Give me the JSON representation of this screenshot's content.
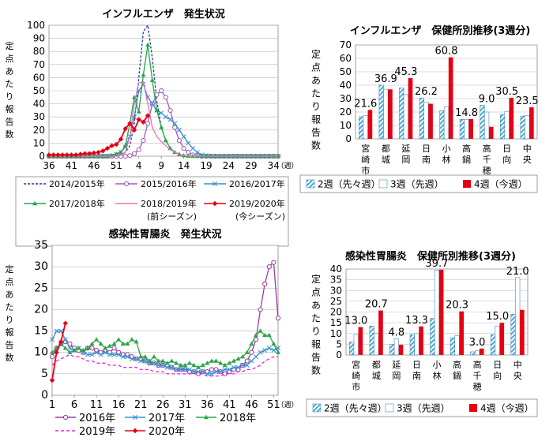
{
  "chart_data": [
    {
      "type": "line",
      "title": "インフルエンザ　発生状況",
      "ylabel": "定点あたり報告数",
      "xunit": "（週）",
      "ylim": [
        0,
        100
      ],
      "yticks": [
        0,
        10,
        20,
        30,
        40,
        50,
        60,
        70,
        80,
        90,
        100
      ],
      "x_ticks": [
        "36",
        "41",
        "46",
        "51",
        "4",
        "9",
        "14",
        "19",
        "24",
        "29",
        "34"
      ],
      "x_positions": [
        "36",
        "37",
        "38",
        "39",
        "40",
        "41",
        "42",
        "43",
        "44",
        "45",
        "46",
        "47",
        "48",
        "49",
        "50",
        "51",
        "52",
        "1",
        "2",
        "3",
        "4",
        "5",
        "6",
        "7",
        "8",
        "9",
        "10",
        "11",
        "12",
        "13",
        "14",
        "15",
        "16",
        "17",
        "18",
        "19",
        "20",
        "21",
        "22",
        "23",
        "24",
        "25",
        "26",
        "27",
        "28",
        "29",
        "30",
        "31",
        "32",
        "33",
        "34",
        "35"
      ],
      "series": [
        {
          "name": "2014/2015年",
          "color": "#1f3f8f",
          "dash": "3,2",
          "marker": "none",
          "values": [
            0,
            0,
            0,
            0,
            0,
            0,
            0,
            0,
            0,
            0,
            0,
            0,
            0,
            0,
            0.2,
            0.5,
            1.2,
            3,
            8,
            25,
            60,
            95,
            100,
            75,
            42,
            22,
            12,
            6,
            3,
            1.5,
            0.5,
            0.2,
            0,
            0,
            0,
            0,
            0,
            0,
            0,
            0,
            0,
            0,
            0,
            0,
            0,
            0,
            0,
            0,
            0,
            0,
            0,
            0
          ]
        },
        {
          "name": "2015/2016年",
          "color": "#9a5fbf",
          "dash": "",
          "marker": "circle",
          "values": [
            0,
            0,
            0,
            0,
            0,
            0,
            0,
            0,
            0,
            0,
            0,
            0,
            0,
            0,
            0,
            0,
            0,
            0,
            0.5,
            2,
            5,
            12,
            25,
            40,
            47,
            50,
            45,
            35,
            22,
            12,
            6,
            3,
            1,
            0.5,
            0,
            0,
            0,
            0,
            0,
            0,
            0,
            0,
            0,
            0,
            0,
            0,
            0,
            0,
            0,
            0,
            0,
            0
          ]
        },
        {
          "name": "2016/2017年",
          "color": "#3b8fd1",
          "dash": "",
          "marker": "x",
          "values": [
            0,
            0,
            0,
            0,
            0,
            0,
            0,
            0,
            0,
            0,
            0,
            0,
            0,
            0,
            0.5,
            1.5,
            3,
            7,
            15,
            30,
            50,
            55,
            45,
            40,
            35,
            33,
            30,
            28,
            25,
            20,
            15,
            10,
            6,
            3,
            1,
            0.5,
            0,
            0,
            0,
            0,
            0,
            0,
            0,
            0,
            0,
            0,
            0,
            0,
            0,
            0,
            0,
            0
          ]
        },
        {
          "name": "2017/2018年",
          "color": "#2aa64b",
          "dash": "",
          "marker": "triangle",
          "values": [
            0,
            0,
            0,
            0,
            0,
            0,
            0,
            0,
            0,
            0,
            0,
            0,
            0,
            0,
            0.5,
            1.5,
            3,
            8,
            25,
            45,
            34,
            62,
            85,
            58,
            35,
            22,
            12,
            6,
            3,
            1.5,
            0.5,
            0.2,
            0,
            0,
            0,
            0,
            0,
            0,
            0,
            0,
            0,
            0,
            0,
            0,
            0,
            0,
            0,
            0,
            0,
            0,
            0,
            0
          ]
        },
        {
          "name": "2018/2019年\n(前シーズン)",
          "color": "#ee6fb5",
          "dash": "",
          "marker": "none",
          "values": [
            0,
            0,
            0,
            0,
            0,
            0,
            0,
            0,
            0,
            0,
            0,
            0,
            0,
            0,
            0,
            0,
            0.5,
            3,
            15,
            40,
            56,
            57,
            40,
            22,
            15,
            11,
            8,
            5,
            3,
            1.5,
            0.5,
            0.2,
            0,
            0,
            0,
            0,
            0,
            0,
            0,
            0,
            0,
            0,
            0,
            0,
            0,
            0,
            0,
            0,
            0,
            0,
            0,
            0
          ]
        },
        {
          "name": "2019/2020年\n(今シーズン)",
          "color": "#e60012",
          "dash": "",
          "marker": "diamond",
          "values": [
            1,
            1,
            1,
            1,
            1,
            1,
            1,
            1.5,
            2,
            2,
            2.5,
            3,
            4,
            6,
            8,
            9,
            13,
            21,
            25,
            20,
            28,
            26,
            31,
            null,
            null,
            null,
            null,
            null,
            null,
            null,
            null,
            null,
            null,
            null,
            null,
            null,
            null,
            null,
            null,
            null,
            null,
            null,
            null,
            null,
            null,
            null,
            null,
            null,
            null,
            null,
            null,
            null
          ]
        }
      ]
    },
    {
      "type": "bar",
      "title": "インフルエンザ　保健所別推移(3週分)",
      "ylabel": "定点あたり報告数",
      "ylim": [
        0,
        70
      ],
      "yticks": [
        0,
        10,
        20,
        30,
        40,
        50,
        60,
        70
      ],
      "categories": [
        "宮崎市",
        "都城",
        "延岡",
        "日南",
        "小林",
        "高鍋",
        "高千穂",
        "日向",
        "中央"
      ],
      "series": [
        {
          "name": "2週（先々週）",
          "color": "#7fc7e8",
          "pattern": "hatch",
          "values": [
            16.5,
            40,
            38,
            30.5,
            21,
            14.5,
            25,
            18,
            17
          ]
        },
        {
          "name": "3週（先週）",
          "color": "#ffffff",
          "pattern": "plain",
          "values": [
            17.5,
            37,
            33,
            27.5,
            24,
            14.5,
            20,
            20.5,
            17.5
          ]
        },
        {
          "name": "4週（今週）",
          "color": "#e60012",
          "pattern": "solid",
          "values": [
            21.6,
            36.9,
            45.3,
            26.2,
            60.8,
            14.8,
            9.0,
            30.5,
            23.5
          ]
        }
      ],
      "data_labels": [
        "21.6",
        "36.9",
        "45.3",
        "26.2",
        "60.8",
        "14.8",
        "9.0",
        "30.5",
        "23.5"
      ]
    },
    {
      "type": "line",
      "title": "感染性胃腸炎　発生状況",
      "ylabel": "定点あたり報告数",
      "xunit": "（週）",
      "ylim": [
        0,
        35
      ],
      "yticks": [
        0,
        5,
        10,
        15,
        20,
        25,
        30,
        35
      ],
      "x_ticks": [
        "1",
        "6",
        "11",
        "16",
        "21",
        "26",
        "31",
        "36",
        "41",
        "46",
        "51"
      ],
      "series": [
        {
          "name": "2016年",
          "color": "#9b3b9b",
          "dash": "",
          "marker": "circle",
          "values": [
            9,
            11,
            12,
            12.5,
            12,
            11,
            10.5,
            10,
            11,
            11,
            10.5,
            10,
            10.5,
            10,
            11,
            10,
            9.5,
            9.5,
            9,
            8.5,
            8.5,
            8,
            7.5,
            7.5,
            7,
            7,
            7,
            6.5,
            6,
            6,
            6,
            5.5,
            5.5,
            5,
            5.5,
            5.5,
            6,
            6,
            5.5,
            5,
            5.5,
            6,
            6,
            7,
            8,
            10,
            13,
            20,
            26,
            30,
            31,
            18
          ]
        },
        {
          "name": "2017年",
          "color": "#3b8fd1",
          "dash": "",
          "marker": "x",
          "values": [
            13,
            15,
            15,
            13,
            11,
            10.5,
            11,
            10,
            9.5,
            9.5,
            10,
            9.5,
            10,
            9.5,
            9.5,
            9.5,
            9,
            9,
            8.5,
            8.5,
            8,
            8,
            7.5,
            7.5,
            7,
            7,
            6.5,
            6.5,
            6,
            6,
            6,
            6,
            5.5,
            5.5,
            5.5,
            5,
            5,
            5.5,
            5.5,
            6,
            6,
            6.5,
            6.5,
            7,
            7,
            8,
            9,
            10,
            10.5,
            11,
            10.5,
            11
          ]
        },
        {
          "name": "2018年",
          "color": "#2aa64b",
          "dash": "",
          "marker": "triangle",
          "values": [
            10,
            11,
            12,
            11,
            10,
            10.5,
            11,
            10.5,
            11,
            12,
            13,
            12,
            11,
            11.5,
            12,
            13,
            12,
            12,
            13,
            12.5,
            9,
            9,
            8,
            9,
            8,
            8,
            7.5,
            8,
            7.5,
            7,
            7,
            7.5,
            7,
            6.5,
            7,
            7.5,
            8,
            8,
            7.5,
            7,
            7.5,
            8,
            8.5,
            9,
            10,
            12,
            14,
            15,
            14,
            14,
            12,
            10
          ]
        },
        {
          "name": "2019年",
          "color": "#e81ee0",
          "dash": "4,3",
          "marker": "none",
          "values": [
            7,
            8,
            8.5,
            9,
            9.5,
            9,
            9,
            8.5,
            8,
            8,
            7.5,
            7.5,
            7.5,
            7,
            7,
            7,
            6.5,
            6.5,
            6.5,
            6.5,
            6,
            6,
            6,
            5.5,
            5.5,
            5.5,
            5,
            5,
            5,
            5,
            5,
            5,
            5,
            5,
            5,
            4.5,
            4.5,
            4.5,
            4.5,
            5,
            5,
            5,
            5.5,
            5.5,
            6,
            6,
            6.5,
            7,
            8,
            8.5,
            9,
            9
          ]
        },
        {
          "name": "2020年",
          "color": "#e60012",
          "dash": "",
          "marker": "diamond",
          "values": [
            3.5,
            10,
            12.5,
            16.8,
            null,
            null,
            null,
            null,
            null,
            null,
            null,
            null,
            null,
            null,
            null,
            null,
            null,
            null,
            null,
            null,
            null,
            null,
            null,
            null,
            null,
            null,
            null,
            null,
            null,
            null,
            null,
            null,
            null,
            null,
            null,
            null,
            null,
            null,
            null,
            null,
            null,
            null,
            null,
            null,
            null,
            null,
            null,
            null,
            null,
            null,
            null,
            null
          ]
        }
      ]
    },
    {
      "type": "bar",
      "title": "感染性胃腸炎　保健所別推移(3週分)",
      "ylabel": "定点あたり報告数",
      "ylim": [
        0,
        40
      ],
      "yticks": [
        0,
        5,
        10,
        15,
        20,
        25,
        30,
        35,
        40
      ],
      "categories": [
        "宮崎市",
        "都城",
        "延岡",
        "日南",
        "小林",
        "高鍋",
        "高千穂",
        "日向",
        "中央"
      ],
      "series": [
        {
          "name": "2週（先々週）",
          "color": "#7fc7e8",
          "pattern": "hatch",
          "values": [
            6,
            13.5,
            5,
            9.5,
            17,
            8,
            1.5,
            9.5,
            19
          ]
        },
        {
          "name": "3週（先週）",
          "color": "#ffffff",
          "pattern": "plain",
          "values": [
            9.5,
            10,
            7.5,
            10,
            39.5,
            9,
            2,
            13.5,
            36
          ]
        },
        {
          "name": "4週（今週）",
          "color": "#e60012",
          "pattern": "solid",
          "values": [
            13.0,
            20.7,
            4.8,
            13.3,
            39.7,
            20.3,
            3.0,
            15.0,
            21.0
          ]
        }
      ],
      "data_labels": [
        "13.0",
        "20.7",
        "4.8",
        "13.3",
        "39.7",
        "20.3",
        "3.0",
        "15.0",
        "21.0"
      ]
    }
  ]
}
